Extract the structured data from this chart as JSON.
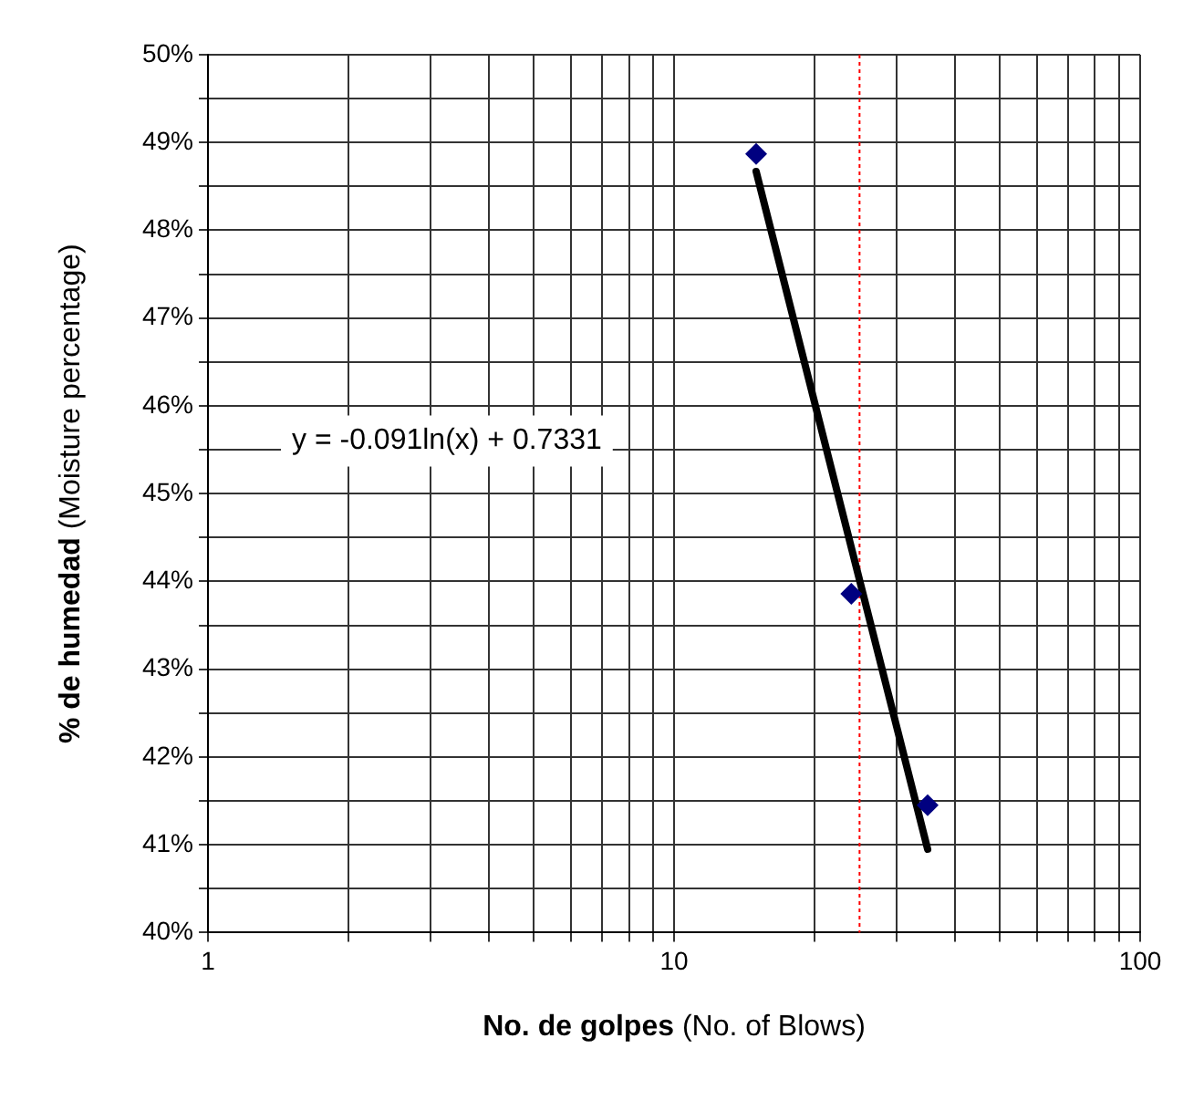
{
  "chart_data": {
    "type": "scatter",
    "xlabel": "No. de golpes (No. of Blows)",
    "ylabel": "% de humedad (Moisture percentage)",
    "log": "x",
    "grid": true,
    "legend": false,
    "xlim": [
      1,
      100
    ],
    "xticks": [
      1,
      {
        "value": 2,
        "label": null
      },
      {
        "value": 3,
        "label": null
      },
      {
        "value": 4,
        "label": null
      },
      {
        "value": 5,
        "label": null
      },
      {
        "value": 6,
        "label": null
      },
      {
        "value": 7,
        "label": null
      },
      {
        "value": 8,
        "label": null
      },
      {
        "value": 9,
        "label": null
      },
      10,
      {
        "value": 20,
        "label": null
      },
      {
        "value": 30,
        "label": null
      },
      {
        "value": 40,
        "label": null
      },
      {
        "value": 50,
        "label": null
      },
      {
        "value": 60,
        "label": null
      },
      {
        "value": 70,
        "label": null
      },
      {
        "value": 80,
        "label": null
      },
      {
        "value": 90,
        "label": null
      },
      100
    ],
    "ylim": [
      40,
      50
    ],
    "yticks": [
      {
        "value": 40,
        "label": "40%"
      },
      {
        "value": 40.5,
        "label": null
      },
      {
        "value": 41,
        "label": "41%"
      },
      {
        "value": 41.5,
        "label": null
      },
      {
        "value": 42,
        "label": "42%"
      },
      {
        "value": 42.5,
        "label": null
      },
      {
        "value": 43,
        "label": "43%"
      },
      {
        "value": 43.5,
        "label": null
      },
      {
        "value": 44,
        "label": "44%"
      },
      {
        "value": 44.5,
        "label": null
      },
      {
        "value": 45,
        "label": "45%"
      },
      {
        "value": 45.5,
        "label": null
      },
      {
        "value": 46,
        "label": "46%"
      },
      {
        "value": 46.5,
        "label": null
      },
      {
        "value": 47,
        "label": "47%"
      },
      {
        "value": 47.5,
        "label": null
      },
      {
        "value": 48,
        "label": "48%"
      },
      {
        "value": 48.5,
        "label": null
      },
      {
        "value": 49,
        "label": "49%"
      },
      {
        "value": 49.5,
        "label": null
      },
      {
        "value": 50,
        "label": "50%"
      }
    ],
    "series": [
      {
        "type": "scatter",
        "color": "#000080",
        "marker": "diamond",
        "x": [
          15,
          24,
          35
        ],
        "values": [
          48.87,
          43.86,
          41.45
        ]
      },
      {
        "type": "line",
        "color": "#000000",
        "marker": "none",
        "line_style": "solid",
        "x": [
          15,
          35
        ],
        "values": [
          48.67,
          40.95
        ]
      }
    ],
    "ref_lines": [
      {
        "axis": "x",
        "value": 25,
        "color": "#ff0000",
        "line_style": "dotted"
      }
    ],
    "annotations": [
      "y = -0.091ln(x) + 0.7331"
    ]
  }
}
